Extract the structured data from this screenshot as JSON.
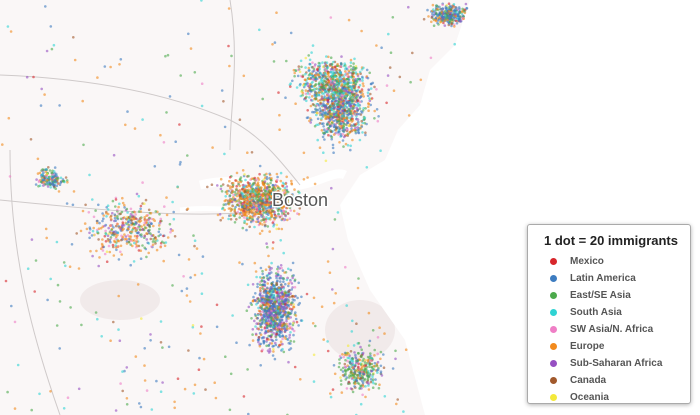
{
  "map": {
    "place_label": "Boston",
    "legend": {
      "title": "1 dot = 20 immigrants",
      "items": [
        {
          "label": "Mexico",
          "color": "#d7262b"
        },
        {
          "label": "Latin America",
          "color": "#3d7cc0"
        },
        {
          "label": "East/SE Asia",
          "color": "#4caa4c"
        },
        {
          "label": "South Asia",
          "color": "#2fd3d3"
        },
        {
          "label": "SW Asia/N. Africa",
          "color": "#ef7fc6"
        },
        {
          "label": "Europe",
          "color": "#f28a1d"
        },
        {
          "label": "Sub-Saharan Africa",
          "color": "#9650c2"
        },
        {
          "label": "Canada",
          "color": "#a1592c"
        },
        {
          "label": "Oceania",
          "color": "#f4e93a"
        }
      ]
    }
  }
}
